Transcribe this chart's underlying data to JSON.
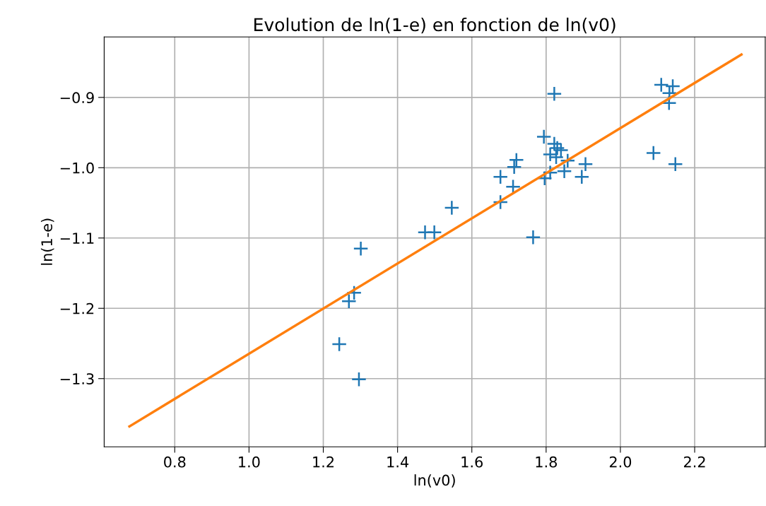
{
  "chart_data": {
    "type": "scatter",
    "title": "Evolution de ln(1-e) en fonction de ln(v0)",
    "xlabel": "ln(v0)",
    "ylabel": "ln(1-e)",
    "xlim": [
      0.61,
      2.39
    ],
    "ylim": [
      -1.397,
      -0.814
    ],
    "xticks": [
      0.8,
      {
        "value": 1.0,
        "label": "1.0"
      },
      1.2,
      1.4,
      1.6,
      1.8,
      {
        "value": 2.0,
        "label": "2.0"
      },
      2.2
    ],
    "yticks": [
      {
        "value": -1.3,
        "label": "−1.3"
      },
      {
        "value": -1.2,
        "label": "−1.2"
      },
      {
        "value": -1.1,
        "label": "−1.1"
      },
      {
        "value": -1.0,
        "label": "−1.0"
      },
      {
        "value": -0.9,
        "label": "−0.9"
      }
    ],
    "grid": true,
    "legend": false,
    "series": [
      {
        "marker": "cross",
        "color": "#1f77b4",
        "x": [
          1.301,
          1.474,
          1.499,
          1.546,
          1.677,
          1.711,
          1.765,
          1.822,
          1.794,
          1.822,
          1.83,
          1.84,
          1.811,
          1.827,
          1.858,
          1.72,
          1.714,
          1.677,
          1.811,
          1.796,
          1.849,
          1.906,
          1.896,
          2.11,
          2.141,
          2.132,
          2.131,
          2.089,
          2.148,
          1.283,
          1.269,
          1.243,
          1.296
        ],
        "values": [
          -1.115,
          -1.092,
          -1.092,
          -1.057,
          -1.049,
          -1.027,
          -1.099,
          -0.895,
          -0.956,
          -0.966,
          -0.972,
          -0.975,
          -0.981,
          -0.985,
          -0.99,
          -0.989,
          -0.999,
          -1.013,
          -1.007,
          -1.015,
          -1.005,
          -0.995,
          -1.013,
          -0.882,
          -0.884,
          -0.894,
          -0.908,
          -0.979,
          -0.995,
          -1.178,
          -1.19,
          -1.251,
          -1.301
        ]
      },
      {
        "type": "line",
        "marker": "none",
        "line_style": "solid",
        "color": "#ff7f0e",
        "x": [
          0.678,
          2.326
        ],
        "values": [
          -1.368,
          -0.839
        ]
      }
    ]
  }
}
